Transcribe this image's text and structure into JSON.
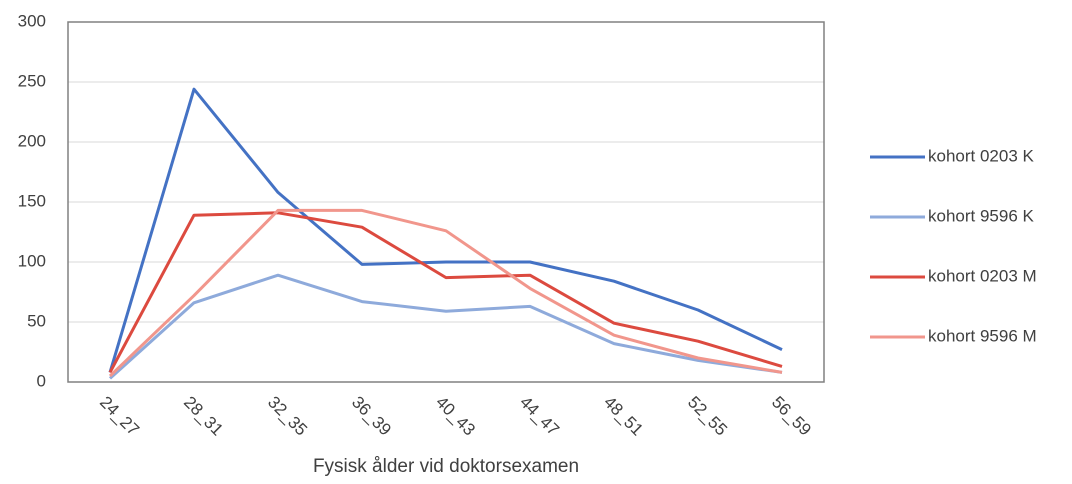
{
  "chart_data": {
    "type": "line",
    "x_label": "Fysisk ålder vid doktorsexamen",
    "categories": [
      "24_27",
      "28_31",
      "32_35",
      "36_39",
      "40_43",
      "44_47",
      "48_51",
      "52_55",
      "56_59"
    ],
    "series": [
      {
        "name": "kohort 0203 K",
        "color": "#4472c4",
        "values": [
          8,
          244,
          158,
          98,
          100,
          100,
          84,
          60,
          27
        ]
      },
      {
        "name": "kohort 9596 K",
        "color": "#8eaadb",
        "values": [
          3,
          66,
          89,
          67,
          59,
          63,
          32,
          18,
          8
        ]
      },
      {
        "name": "kohort 0203 M",
        "color": "#dc4a3f",
        "values": [
          8,
          139,
          141,
          129,
          87,
          89,
          49,
          34,
          13
        ]
      },
      {
        "name": "kohort 9596 M",
        "color": "#f1968c",
        "values": [
          5,
          72,
          143,
          143,
          126,
          78,
          39,
          20,
          8
        ]
      }
    ],
    "ylim": [
      0,
      300
    ],
    "yticks": [
      0,
      50,
      100,
      150,
      200,
      250,
      300
    ],
    "grid": true,
    "legend": "right"
  }
}
